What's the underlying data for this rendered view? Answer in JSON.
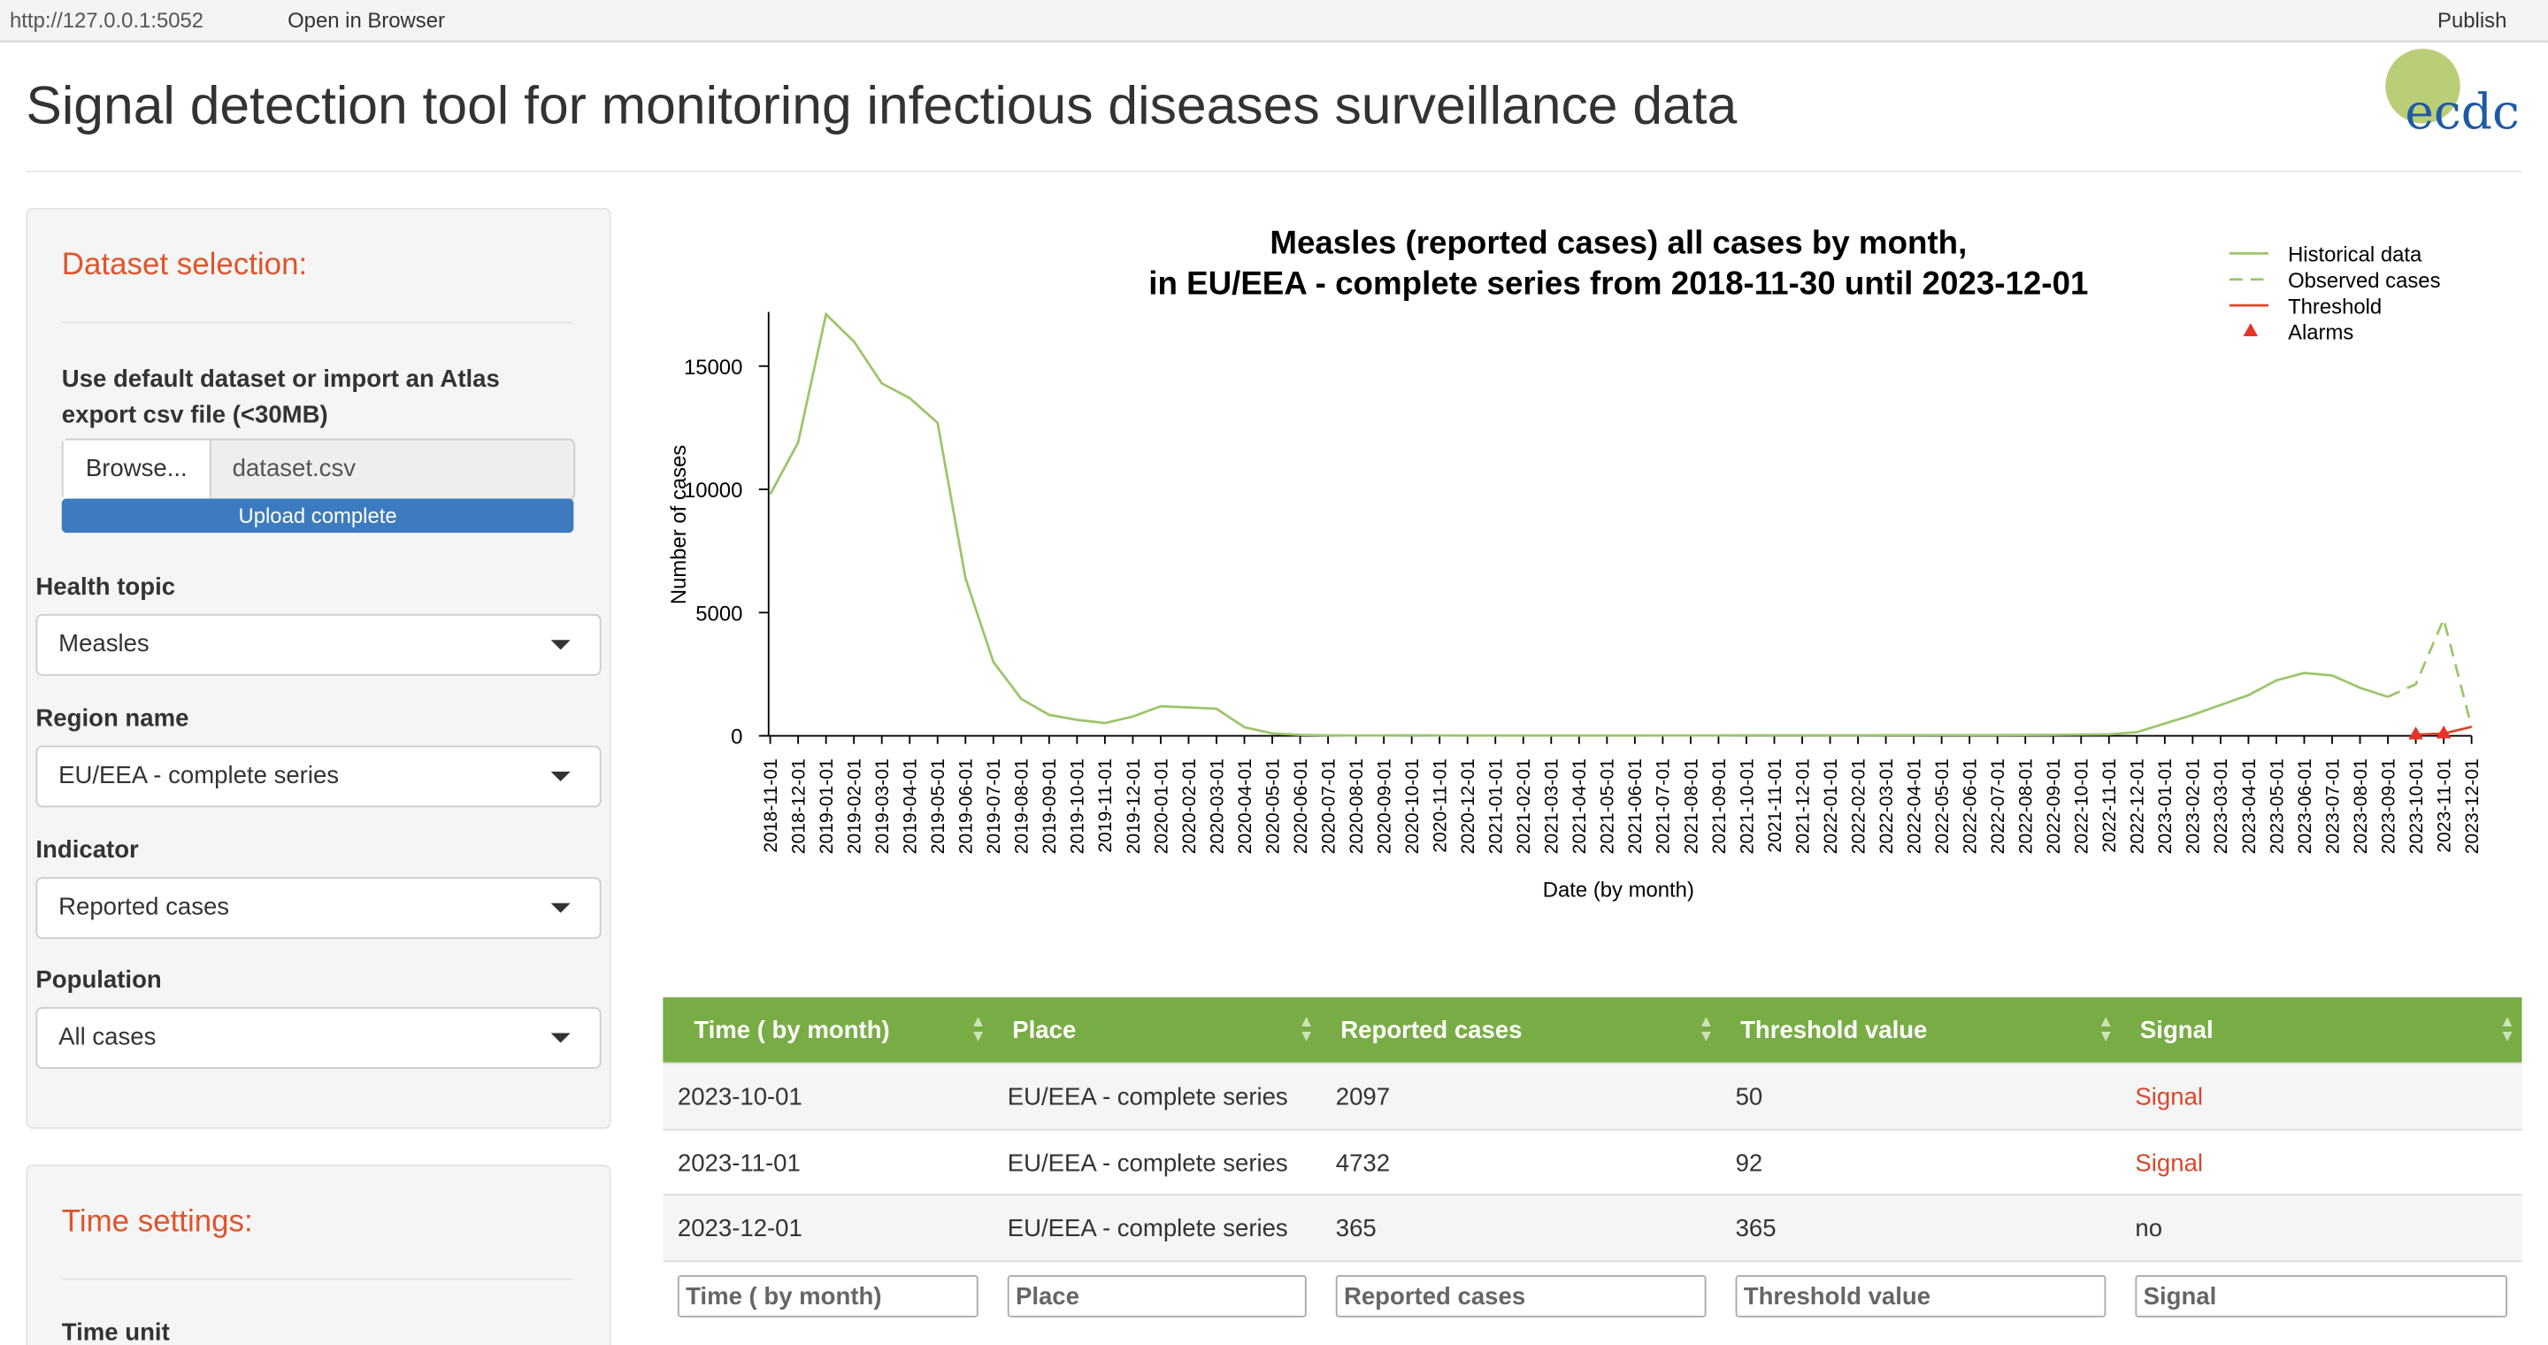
{
  "browser": {
    "url": "http://127.0.0.1:5052",
    "open": "Open in Browser",
    "publish": "Publish"
  },
  "header": {
    "title": "Signal detection tool for monitoring infectious diseases surveillance data",
    "logo": "ecdc"
  },
  "sidebar": {
    "dataset_heading": "Dataset selection:",
    "import_label": "Use default dataset or import an Atlas export csv file (<30MB)",
    "browse": "Browse...",
    "file": "dataset.csv",
    "upload": "Upload complete",
    "fields": [
      {
        "label": "Health topic",
        "value": "Measles"
      },
      {
        "label": "Region name",
        "value": "EU/EEA - complete series"
      },
      {
        "label": "Indicator",
        "value": "Reported cases"
      },
      {
        "label": "Population",
        "value": "All cases"
      }
    ],
    "time_heading": "Time settings:",
    "time_unit": "Time unit"
  },
  "chart_data": {
    "type": "line",
    "title": [
      "Measles (reported cases) all cases by month,",
      "in EU/EEA - complete series from 2018-11-30 until 2023-12-01"
    ],
    "x_label": "Date (by month)",
    "y_label": "Number of cases",
    "categories": [
      "2018-11-01",
      "2018-12-01",
      "2019-01-01",
      "2019-02-01",
      "2019-03-01",
      "2019-04-01",
      "2019-05-01",
      "2019-06-01",
      "2019-07-01",
      "2019-08-01",
      "2019-09-01",
      "2019-10-01",
      "2019-11-01",
      "2019-12-01",
      "2020-01-01",
      "2020-02-01",
      "2020-03-01",
      "2020-04-01",
      "2020-05-01",
      "2020-06-01",
      "2020-07-01",
      "2020-08-01",
      "2020-09-01",
      "2020-10-01",
      "2020-11-01",
      "2020-12-01",
      "2021-01-01",
      "2021-02-01",
      "2021-03-01",
      "2021-04-01",
      "2021-05-01",
      "2021-06-01",
      "2021-07-01",
      "2021-08-01",
      "2021-09-01",
      "2021-10-01",
      "2021-11-01",
      "2021-12-01",
      "2022-01-01",
      "2022-02-01",
      "2022-03-01",
      "2022-04-01",
      "2022-05-01",
      "2022-06-01",
      "2022-07-01",
      "2022-08-01",
      "2022-09-01",
      "2022-10-01",
      "2022-11-01",
      "2022-12-01",
      "2023-01-01",
      "2023-02-01",
      "2023-03-01",
      "2023-04-01",
      "2023-05-01",
      "2023-06-01",
      "2023-07-01",
      "2023-08-01",
      "2023-09-01",
      "2023-10-01",
      "2023-11-01",
      "2023-12-01"
    ],
    "series": [
      {
        "name": "Historical data",
        "color": "#9dc46b",
        "dash": false,
        "marker": "none",
        "values": [
          9800,
          11900,
          17100,
          16000,
          14300,
          13700,
          12700,
          6400,
          3000,
          1500,
          850,
          650,
          520,
          780,
          1200,
          1150,
          1100,
          350,
          100,
          40,
          20,
          15,
          15,
          20,
          15,
          10,
          10,
          10,
          10,
          10,
          10,
          10,
          15,
          15,
          15,
          20,
          20,
          20,
          20,
          20,
          25,
          25,
          30,
          30,
          30,
          35,
          40,
          50,
          60,
          150,
          500,
          850,
          1250,
          1650,
          2250,
          2550,
          2450,
          1950,
          1580,
          null,
          null,
          null
        ]
      },
      {
        "name": "Observed cases",
        "color": "#9dc46b",
        "dash": true,
        "marker": "none",
        "values": [
          null,
          null,
          null,
          null,
          null,
          null,
          null,
          null,
          null,
          null,
          null,
          null,
          null,
          null,
          null,
          null,
          null,
          null,
          null,
          null,
          null,
          null,
          null,
          null,
          null,
          null,
          null,
          null,
          null,
          null,
          null,
          null,
          null,
          null,
          null,
          null,
          null,
          null,
          null,
          null,
          null,
          null,
          null,
          null,
          null,
          null,
          null,
          null,
          null,
          null,
          null,
          null,
          null,
          null,
          null,
          null,
          null,
          null,
          1580,
          2097,
          4732,
          365
        ]
      },
      {
        "name": "Threshold",
        "color": "#d9472b",
        "dash": false,
        "marker": "none",
        "values": [
          null,
          null,
          null,
          null,
          null,
          null,
          null,
          null,
          null,
          null,
          null,
          null,
          null,
          null,
          null,
          null,
          null,
          null,
          null,
          null,
          null,
          null,
          null,
          null,
          null,
          null,
          null,
          null,
          null,
          null,
          null,
          null,
          null,
          null,
          null,
          null,
          null,
          null,
          null,
          null,
          null,
          null,
          null,
          null,
          null,
          null,
          null,
          null,
          null,
          null,
          null,
          null,
          null,
          null,
          null,
          null,
          null,
          null,
          null,
          50,
          92,
          365
        ]
      },
      {
        "name": "Alarms",
        "color": "#e8312a",
        "dash": false,
        "marker": "triangle",
        "values": [
          null,
          null,
          null,
          null,
          null,
          null,
          null,
          null,
          null,
          null,
          null,
          null,
          null,
          null,
          null,
          null,
          null,
          null,
          null,
          null,
          null,
          null,
          null,
          null,
          null,
          null,
          null,
          null,
          null,
          null,
          null,
          null,
          null,
          null,
          null,
          null,
          null,
          null,
          null,
          null,
          null,
          null,
          null,
          null,
          null,
          null,
          null,
          null,
          null,
          null,
          null,
          null,
          null,
          null,
          null,
          null,
          null,
          null,
          null,
          50,
          92,
          null
        ]
      }
    ],
    "ylim": [
      0,
      17200
    ],
    "yticks": [
      0,
      5000,
      10000,
      15000
    ],
    "grid": false,
    "legend": "top-right"
  },
  "table": {
    "columns": [
      "Time ( by month)",
      "Place",
      "Reported cases",
      "Threshold value",
      "Signal"
    ],
    "rows": [
      [
        "2023-10-01",
        "EU/EEA - complete series",
        "2097",
        "50",
        "Signal"
      ],
      [
        "2023-11-01",
        "EU/EEA - complete series",
        "4732",
        "92",
        "Signal"
      ],
      [
        "2023-12-01",
        "EU/EEA - complete series",
        "365",
        "365",
        "no"
      ]
    ],
    "signal_color": "#d9472b",
    "filters": [
      "Time ( by month)",
      "Place",
      "Reported cases",
      "Threshold value",
      "Signal"
    ]
  }
}
